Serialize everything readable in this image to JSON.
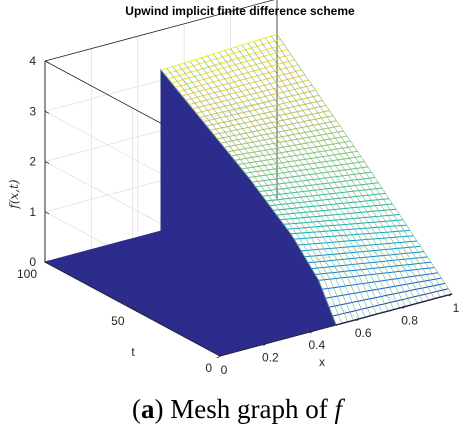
{
  "caption": {
    "open": "(",
    "label": "a",
    "close": ")",
    "text": " Mesh graph of ",
    "var": "f"
  },
  "chart_data": {
    "type": "surface",
    "title": "Upwind implicit finite difference scheme",
    "xlabel": "x",
    "ylabel": "t",
    "zlabel": "f(x,t)",
    "xlim": [
      0,
      1
    ],
    "ylim": [
      0,
      100
    ],
    "zlim": [
      0,
      4
    ],
    "xticks": [
      "0",
      "0.2",
      "0.4",
      "0.6",
      "0.8",
      "1"
    ],
    "yticks": [
      "0",
      "50",
      "100"
    ],
    "zticks": [
      "0",
      "1",
      "2",
      "3",
      "4"
    ],
    "grid": true,
    "colormap": "parula",
    "colormap_colors": [
      "#352A87",
      "#0F5CDD",
      "#1481D6",
      "#06A4CA",
      "#2EB7A4",
      "#87BF77",
      "#D1BB59",
      "#FEC832",
      "#F9FB0E"
    ],
    "surface_color": "#2B2C8C",
    "surface_description": "f = 0 for x < 0.5; for x >= 0.5, f rises from 0 at t = 0 to about 3.2 at t = 100",
    "x_step_at": 0.5,
    "x_mesh_lines": 21,
    "t_mesh_lines": 51,
    "f_at_step": [
      {
        "t": 0,
        "f": 0
      },
      {
        "t": 10,
        "f": 0.7
      },
      {
        "t": 25,
        "f": 1.3
      },
      {
        "t": 50,
        "f": 2.0
      },
      {
        "t": 75,
        "f": 2.6
      },
      {
        "t": 100,
        "f": 3.2
      }
    ],
    "f_at_right_edge": [
      {
        "t": 0,
        "f": 0
      },
      {
        "t": 50,
        "f": 1.7
      },
      {
        "t": 100,
        "f": 3.3
      }
    ]
  }
}
